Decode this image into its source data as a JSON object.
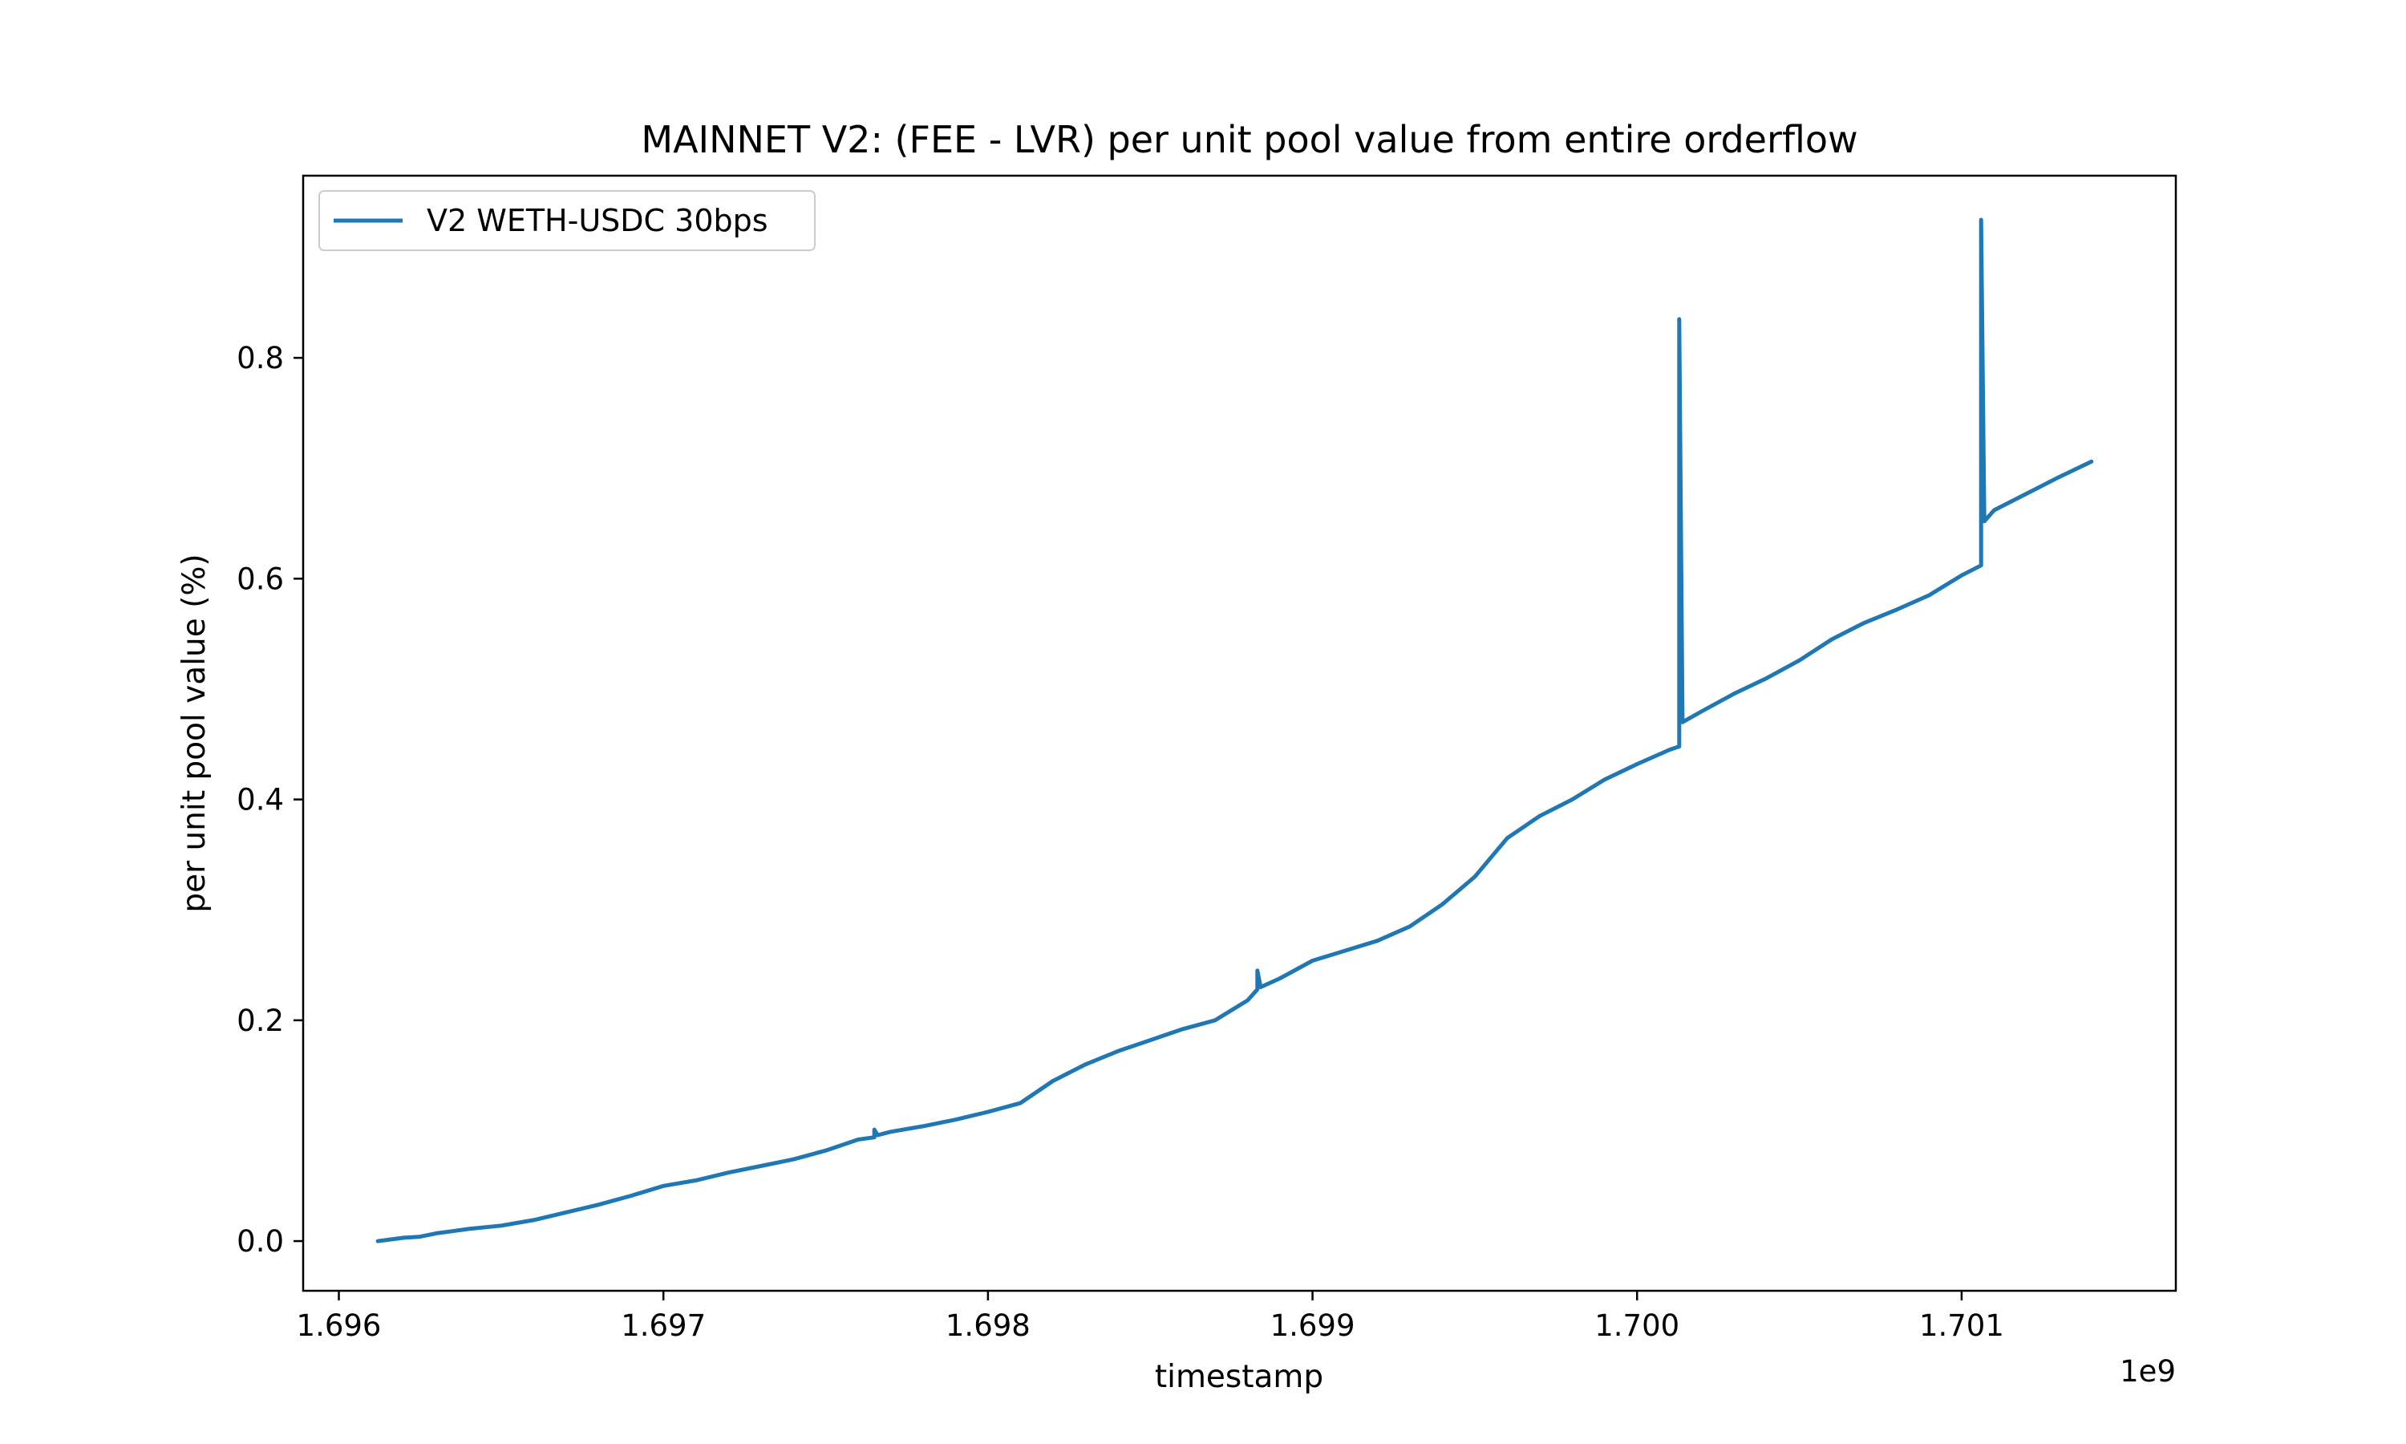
{
  "chart_data": {
    "type": "line",
    "title": "MAINNET V2: (FEE - LVR) per unit pool value from entire orderflow",
    "xlabel": "timestamp",
    "ylabel": "per unit pool value (%)",
    "x_offset_label": "1e9",
    "xlim": [
      1.69589,
      1.70166
    ],
    "ylim": [
      -0.045,
      0.965
    ],
    "xticks": [
      1.696,
      1.697,
      1.698,
      1.699,
      1.7,
      1.701
    ],
    "xtick_labels": [
      "1.696",
      "1.697",
      "1.698",
      "1.699",
      "1.700",
      "1.701"
    ],
    "yticks": [
      0.0,
      0.2,
      0.4,
      0.6,
      0.8
    ],
    "ytick_labels": [
      "0.0",
      "0.2",
      "0.4",
      "0.6",
      "0.8"
    ],
    "legend": {
      "placement": "top-left",
      "entries": [
        "V2 WETH-USDC 30bps"
      ]
    },
    "grid": false,
    "series": [
      {
        "name": "V2 WETH-USDC 30bps",
        "color": "#1f77b4",
        "x": [
          1.69612,
          1.6962,
          1.69625,
          1.6963,
          1.69635,
          1.6964,
          1.6965,
          1.6966,
          1.6967,
          1.6968,
          1.6969,
          1.697,
          1.6971,
          1.6972,
          1.6973,
          1.6974,
          1.6975,
          1.6976,
          1.69765,
          1.69765,
          1.69766,
          1.6977,
          1.6978,
          1.6979,
          1.698,
          1.6981,
          1.6982,
          1.6983,
          1.6984,
          1.6985,
          1.6986,
          1.6987,
          1.6988,
          1.69883,
          1.69883,
          1.69884,
          1.6989,
          1.699,
          1.6991,
          1.6992,
          1.6993,
          1.6994,
          1.6995,
          1.6996,
          1.6997,
          1.6998,
          1.6999,
          1.7,
          1.7001,
          1.70013,
          1.70013,
          1.70014,
          1.7002,
          1.7003,
          1.7004,
          1.7005,
          1.7006,
          1.7007,
          1.7008,
          1.7009,
          1.701,
          1.70106,
          1.70106,
          1.70107,
          1.7011,
          1.7012,
          1.7013,
          1.7014
        ],
        "y": [
          0.0,
          0.003,
          0.004,
          0.007,
          0.009,
          0.011,
          0.014,
          0.019,
          0.026,
          0.033,
          0.041,
          0.05,
          0.055,
          0.062,
          0.068,
          0.074,
          0.082,
          0.092,
          0.094,
          0.101,
          0.096,
          0.099,
          0.104,
          0.11,
          0.117,
          0.125,
          0.145,
          0.16,
          0.172,
          0.182,
          0.192,
          0.2,
          0.218,
          0.228,
          0.245,
          0.23,
          0.238,
          0.254,
          0.263,
          0.272,
          0.285,
          0.305,
          0.33,
          0.365,
          0.385,
          0.4,
          0.418,
          0.432,
          0.445,
          0.448,
          0.835,
          0.47,
          0.48,
          0.496,
          0.51,
          0.526,
          0.545,
          0.56,
          0.572,
          0.585,
          0.603,
          0.612,
          0.925,
          0.652,
          0.662,
          0.677,
          0.692,
          0.706
        ]
      }
    ]
  }
}
